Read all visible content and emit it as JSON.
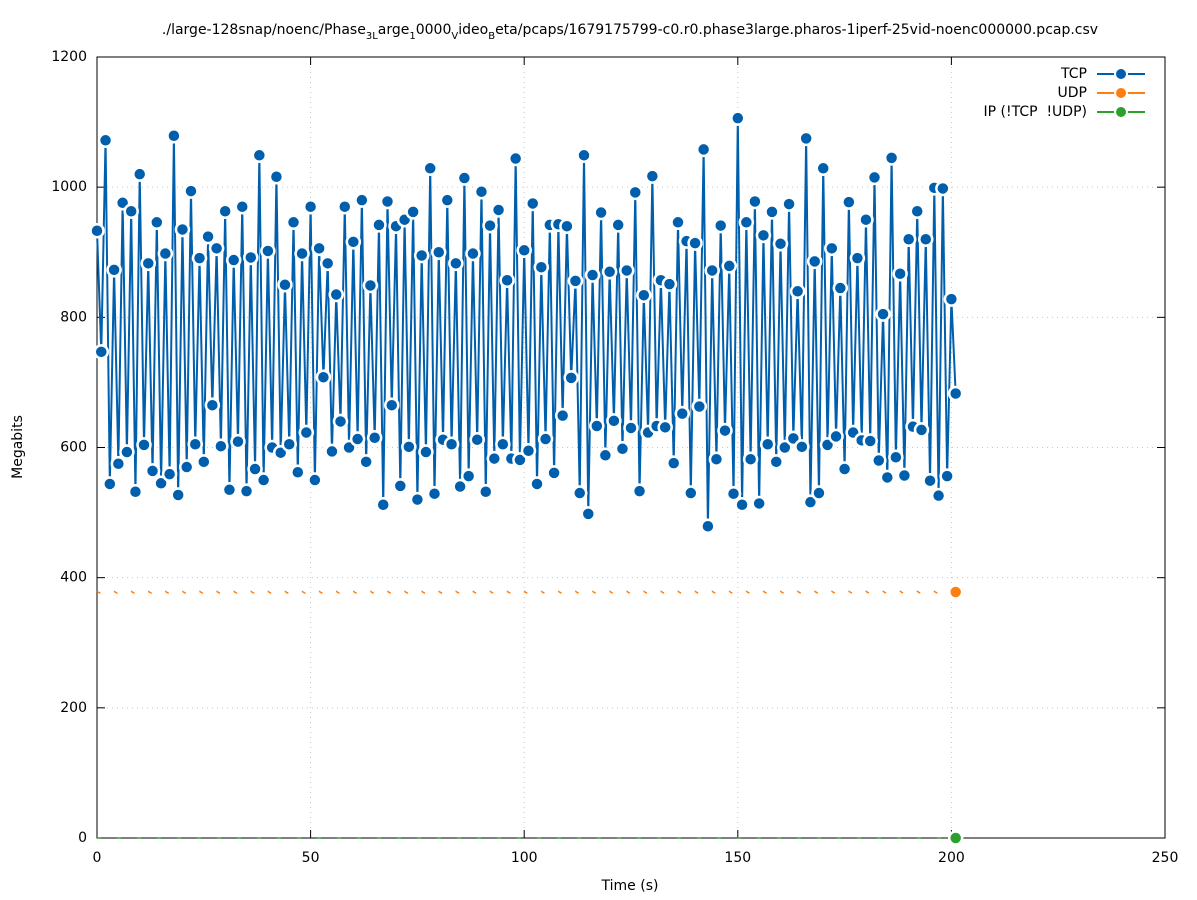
{
  "chart_data": {
    "type": "line",
    "title_parts": [
      "./large-128snap/noenc/Phase",
      "3L",
      "arge",
      "1",
      "0000",
      "V",
      "ideo",
      "B",
      "eta/pcaps/1679175799-c0.r0.phase3large.pharos-1iperf-25vid-noenc000000.pcap.csv"
    ],
    "x_label": "Time (s)",
    "y_label": "Megabits",
    "xlim": [
      0,
      250
    ],
    "xticks": [
      0,
      50,
      100,
      150,
      200,
      250
    ],
    "ylim": [
      0,
      1200
    ],
    "yticks": [
      0,
      200,
      400,
      600,
      800,
      1000,
      1200
    ],
    "grid": true,
    "legend": "top-right",
    "x": [
      0,
      1,
      2,
      3,
      4,
      5,
      6,
      7,
      8,
      9,
      10,
      11,
      12,
      13,
      14,
      15,
      16,
      17,
      18,
      19,
      20,
      21,
      22,
      23,
      24,
      25,
      26,
      27,
      28,
      29,
      30,
      31,
      32,
      33,
      34,
      35,
      36,
      37,
      38,
      39,
      40,
      41,
      42,
      43,
      44,
      45,
      46,
      47,
      48,
      49,
      50,
      51,
      52,
      53,
      54,
      55,
      56,
      57,
      58,
      59,
      60,
      61,
      62,
      63,
      64,
      65,
      66,
      67,
      68,
      69,
      70,
      71,
      72,
      73,
      74,
      75,
      76,
      77,
      78,
      79,
      80,
      81,
      82,
      83,
      84,
      85,
      86,
      87,
      88,
      89,
      90,
      91,
      92,
      93,
      94,
      95,
      96,
      97,
      98,
      99,
      100,
      101,
      102,
      103,
      104,
      105,
      106,
      107,
      108,
      109,
      110,
      111,
      112,
      113,
      114,
      115,
      116,
      117,
      118,
      119,
      120,
      121,
      122,
      123,
      124,
      125,
      126,
      127,
      128,
      129,
      130,
      131,
      132,
      133,
      134,
      135,
      136,
      137,
      138,
      139,
      140,
      141,
      142,
      143,
      144,
      145,
      146,
      147,
      148,
      149,
      150,
      151,
      152,
      153,
      154,
      155,
      156,
      157,
      158,
      159,
      160,
      161,
      162,
      163,
      164,
      165,
      166,
      167,
      168,
      169,
      170,
      171,
      172,
      173,
      174,
      175,
      176,
      177,
      178,
      179,
      180,
      181,
      182,
      183,
      184,
      185,
      186,
      187,
      188,
      189,
      190,
      191,
      192,
      193,
      194,
      195,
      196,
      197,
      198,
      199,
      200,
      201
    ],
    "series": [
      {
        "name": "TCP",
        "color": "#005fad",
        "values": [
          933,
          747,
          1072,
          544,
          873,
          575,
          976,
          593,
          963,
          532,
          1020,
          604,
          883,
          564,
          946,
          545,
          898,
          559,
          1079,
          527,
          935,
          570,
          994,
          605,
          891,
          578,
          924,
          665,
          906,
          602,
          963,
          535,
          888,
          609,
          970,
          533,
          892,
          567,
          1049,
          550,
          902,
          600,
          1016,
          592,
          850,
          605,
          946,
          562,
          898,
          623,
          970,
          550,
          906,
          708,
          883,
          594,
          835,
          640,
          970,
          600,
          916,
          613,
          980,
          578,
          849,
          615,
          942,
          512,
          978,
          665,
          940,
          541,
          950,
          601,
          962,
          520,
          895,
          593,
          1029,
          529,
          900,
          612,
          980,
          605,
          883,
          540,
          1014,
          556,
          898,
          612,
          993,
          532,
          941,
          583,
          965,
          605,
          857,
          583,
          1044,
          581,
          903,
          595,
          975,
          544,
          877,
          613,
          942,
          561,
          943,
          649,
          940,
          707,
          856,
          530,
          1049,
          498,
          865,
          633,
          961,
          588,
          870,
          641,
          942,
          598,
          872,
          630,
          992,
          533,
          834,
          623,
          1017,
          633,
          857,
          631,
          851,
          576,
          946,
          652,
          917,
          530,
          914,
          663,
          1058,
          479,
          872,
          582,
          941,
          626,
          879,
          529,
          1106,
          512,
          946,
          582,
          978,
          514,
          926,
          605,
          962,
          578,
          913,
          600,
          974,
          614,
          840,
          601,
          1075,
          516,
          886,
          530,
          1029,
          604,
          906,
          617,
          845,
          567,
          977,
          623,
          891,
          611,
          950,
          610,
          1015,
          580,
          805,
          554,
          1045,
          585,
          867,
          557,
          920,
          632,
          963,
          627,
          920,
          549,
          999,
          526,
          998,
          556,
          828,
          683
        ]
      },
      {
        "name": "UDP",
        "color": "#ff7f0e",
        "values": [
          379,
          375,
          379,
          375,
          379,
          375,
          379,
          375,
          379,
          375,
          379,
          375,
          379,
          375,
          379,
          375,
          379,
          375,
          379,
          375,
          379,
          375,
          379,
          375,
          379,
          375,
          379,
          375,
          379,
          375,
          379,
          375,
          379,
          375,
          379,
          375,
          379,
          375,
          379,
          375,
          379,
          375,
          379,
          375,
          379,
          375,
          379,
          375,
          379,
          375,
          379,
          375,
          379,
          375,
          379,
          375,
          379,
          375,
          379,
          375,
          379,
          375,
          379,
          375,
          379,
          375,
          379,
          375,
          379,
          375,
          379,
          375,
          379,
          375,
          379,
          375,
          379,
          375,
          379,
          375,
          379,
          375,
          379,
          375,
          379,
          375,
          379,
          375,
          379,
          375,
          379,
          375,
          379,
          375,
          379,
          375,
          379,
          375,
          379,
          375,
          379,
          375,
          379,
          375,
          379,
          375,
          379,
          375,
          379,
          375,
          379,
          375,
          379,
          375,
          379,
          375,
          379,
          375,
          379,
          375,
          379,
          375,
          379,
          375,
          379,
          375,
          379,
          375,
          379,
          375,
          379,
          375,
          379,
          375,
          379,
          375,
          379,
          375,
          379,
          375,
          379,
          375,
          379,
          375,
          379,
          375,
          379,
          375,
          379,
          375,
          379,
          375,
          379,
          375,
          379,
          375,
          379,
          375,
          379,
          375,
          379,
          375,
          379,
          375,
          379,
          375,
          379,
          375,
          379,
          375,
          379,
          375,
          379,
          375,
          379,
          375,
          379,
          375,
          379,
          375,
          379,
          375,
          379,
          375,
          379,
          375,
          379,
          375,
          379,
          375,
          379,
          375,
          379,
          375,
          379,
          375,
          379,
          375,
          379,
          375,
          379,
          378
        ]
      },
      {
        "name": "IP (!TCP  !UDP)",
        "color": "#2ca02c",
        "values": [
          0,
          0,
          0,
          0,
          0,
          0,
          0,
          0,
          0,
          0,
          0,
          0,
          0,
          0,
          0,
          0,
          0,
          0,
          0,
          0,
          0,
          0,
          0,
          0,
          0,
          0,
          0,
          0,
          0,
          0,
          0,
          0,
          0,
          0,
          0,
          0,
          0,
          0,
          0,
          0,
          0,
          0,
          0,
          0,
          0,
          0,
          0,
          0,
          0,
          0,
          0,
          0,
          0,
          0,
          0,
          0,
          0,
          0,
          0,
          0,
          0,
          0,
          0,
          0,
          0,
          0,
          0,
          0,
          0,
          0,
          0,
          0,
          0,
          0,
          0,
          0,
          0,
          0,
          0,
          0,
          0,
          0,
          0,
          0,
          0,
          0,
          0,
          0,
          0,
          0,
          0,
          0,
          0,
          0,
          0,
          0,
          0,
          0,
          0,
          0,
          0,
          0,
          0,
          0,
          0,
          0,
          0,
          0,
          0,
          0,
          0,
          0,
          0,
          0,
          0,
          0,
          0,
          0,
          0,
          0,
          0,
          0,
          0,
          0,
          0,
          0,
          0,
          0,
          0,
          0,
          0,
          0,
          0,
          0,
          0,
          0,
          0,
          0,
          0,
          0,
          0,
          0,
          0,
          0,
          0,
          0,
          0,
          0,
          0,
          0,
          0,
          0,
          0,
          0,
          0,
          0,
          0,
          0,
          0,
          0,
          0,
          0,
          0,
          0,
          0,
          0,
          0,
          0,
          0,
          0,
          0,
          0,
          0,
          0,
          0,
          0,
          0,
          0,
          0,
          0,
          0,
          0,
          0,
          0,
          0,
          0,
          0,
          0,
          0,
          0,
          0,
          0,
          0,
          0,
          0,
          0,
          0,
          0,
          0,
          0,
          0,
          0
        ]
      }
    ]
  }
}
